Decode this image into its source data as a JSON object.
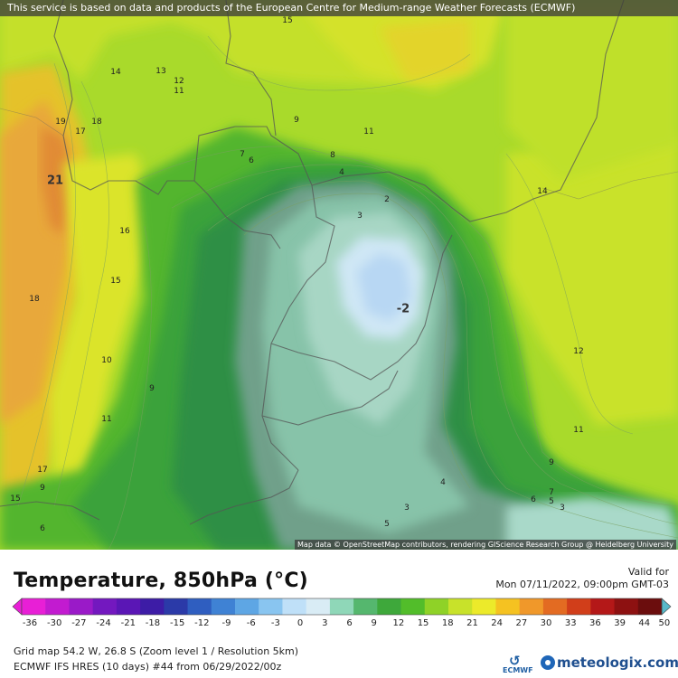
{
  "banner_text": "This service is based on data and products of the European Centre for Medium-range Weather Forecasts (ECMWF)",
  "map_attribution": "Map data © OpenStreetMap contributors, rendering GIScience Research Group @ Heidelberg University",
  "title": "Temperature, 850hPa (°C)",
  "valid_label": "Valid for",
  "valid_date": "Mon 07/11/2022, 09:00pm GMT-03",
  "grid_info": "Grid map 54.2 W, 26.8 S (Zoom level 1 / Resolution 5km)",
  "model_info": "ECMWF IFS HRES (10 days) #44 from 06/29/2022/00z",
  "ecmwf_logo_text": "ECMWF",
  "brand_name": "meteologix.com",
  "colorbar": {
    "ticks": [
      "-36",
      "-30",
      "-27",
      "-24",
      "-21",
      "-18",
      "-15",
      "-12",
      "-9",
      "-6",
      "-3",
      "0",
      "3",
      "6",
      "9",
      "12",
      "15",
      "18",
      "21",
      "24",
      "27",
      "30",
      "33",
      "36",
      "39",
      "44",
      "50"
    ],
    "colors": [
      "#e81fd6",
      "#c21bd0",
      "#9a1ac8",
      "#7318bf",
      "#5a16b5",
      "#3d1ca6",
      "#2b3aa8",
      "#2f5ec0",
      "#3f82d4",
      "#5ea6e4",
      "#89c5f0",
      "#bfe0f8",
      "#d9ecf5",
      "#8fd7b8",
      "#55b76e",
      "#3ea83b",
      "#52bd2a",
      "#8fd227",
      "#c8e22a",
      "#ecea2a",
      "#f5c221",
      "#f0982a",
      "#e36b22",
      "#d13e1a",
      "#b41818",
      "#8d1111",
      "#6b0d0d",
      "#58b9c9"
    ]
  },
  "contour_labels": [
    {
      "text": "15"
    },
    {
      "text": "14"
    },
    {
      "text": "13"
    },
    {
      "text": "12"
    },
    {
      "text": "11"
    },
    {
      "text": "19"
    },
    {
      "text": "18"
    },
    {
      "text": "17"
    },
    {
      "text": "21"
    },
    {
      "text": "9"
    },
    {
      "text": "11"
    },
    {
      "text": "7"
    },
    {
      "text": "6"
    },
    {
      "text": "8"
    },
    {
      "text": "4"
    },
    {
      "text": "2"
    },
    {
      "text": "3"
    },
    {
      "text": "14"
    },
    {
      "text": "16"
    },
    {
      "text": "15"
    },
    {
      "text": "18"
    },
    {
      "text": "10"
    },
    {
      "text": "9"
    },
    {
      "text": "11"
    },
    {
      "text": "-2"
    },
    {
      "text": "12"
    },
    {
      "text": "11"
    },
    {
      "text": "9"
    },
    {
      "text": "17"
    },
    {
      "text": "9"
    },
    {
      "text": "15"
    },
    {
      "text": "6"
    },
    {
      "text": "4"
    },
    {
      "text": "5"
    },
    {
      "text": "3"
    },
    {
      "text": "7"
    },
    {
      "text": "6"
    },
    {
      "text": "5"
    },
    {
      "text": "3"
    }
  ]
}
